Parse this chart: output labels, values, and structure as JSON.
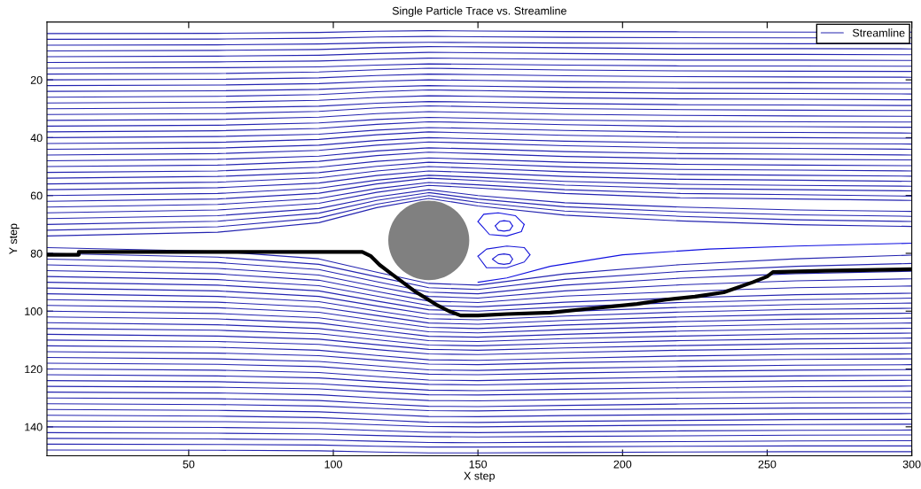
{
  "chart_data": {
    "type": "line",
    "title": "Single Particle Trace vs. Streamline",
    "xlabel": "X step",
    "ylabel": "Y step",
    "xlim": [
      1,
      300
    ],
    "ylim": [
      150,
      0
    ],
    "xticks": [
      50,
      100,
      150,
      200,
      250,
      300
    ],
    "yticks": [
      20,
      40,
      60,
      80,
      100,
      120,
      140
    ],
    "grid": false,
    "legend": "top right",
    "marker": "none",
    "line_style": "solid",
    "x": [
      1,
      60,
      95,
      115,
      133,
      150,
      180,
      220,
      260,
      300
    ],
    "series": [
      {
        "name": "Streamline",
        "color": "#2424b0",
        "values": [
          4,
          3.9,
          3.6,
          3.2,
          3,
          3.1,
          3.3,
          3.4,
          3.5,
          3.5
        ]
      },
      {
        "color": "#2424b0",
        "values": [
          6,
          5.9,
          5.6,
          5.2,
          5,
          5.1,
          5.3,
          5.4,
          5.5,
          5.5
        ]
      },
      {
        "color": "#2424b0",
        "values": [
          8,
          7.9,
          7.6,
          7.2,
          7,
          7.1,
          7.3,
          7.4,
          7.5,
          7.5
        ]
      },
      {
        "color": "#2424b0",
        "values": [
          10,
          9.8,
          9.5,
          8.9,
          8.5,
          8.6,
          8.9,
          9.2,
          9.2,
          9.3
        ]
      },
      {
        "color": "#2424b0",
        "values": [
          12,
          11.8,
          11.5,
          10.9,
          10.5,
          10.6,
          10.9,
          11.2,
          11.2,
          11.3
        ]
      },
      {
        "color": "#2424b0",
        "values": [
          14,
          13.8,
          13.5,
          12.9,
          12.5,
          12.6,
          12.9,
          13.2,
          13.2,
          13.3
        ]
      },
      {
        "color": "#2424b0",
        "values": [
          16,
          15.8,
          15.5,
          14.9,
          14.5,
          14.6,
          14.9,
          15.2,
          15.2,
          15.3
        ]
      },
      {
        "color": "#2424b0",
        "values": [
          18,
          17.8,
          17.3,
          16.5,
          16,
          16.2,
          16.6,
          16.9,
          17,
          17.1
        ]
      },
      {
        "color": "#2424b0",
        "values": [
          20,
          19.8,
          19.3,
          18.5,
          18,
          18.2,
          18.6,
          18.9,
          19,
          19.1
        ]
      },
      {
        "color": "#2424b0",
        "values": [
          22,
          21.8,
          21.3,
          20.5,
          20,
          20.2,
          20.6,
          20.9,
          21,
          21.1
        ]
      },
      {
        "color": "#2424b0",
        "values": [
          24,
          23.8,
          23.3,
          22.5,
          22,
          22.2,
          22.6,
          22.9,
          23,
          23.1
        ]
      },
      {
        "color": "#2424b0",
        "values": [
          26,
          25.7,
          25.1,
          24.1,
          23.5,
          23.7,
          24.2,
          24.6,
          24.7,
          24.9
        ]
      },
      {
        "color": "#2424b0",
        "values": [
          28,
          27.7,
          27.1,
          26.1,
          25.5,
          25.7,
          26.2,
          26.6,
          26.7,
          26.9
        ]
      },
      {
        "color": "#2424b0",
        "values": [
          30,
          29.7,
          29.1,
          28.1,
          27.5,
          27.7,
          28.2,
          28.6,
          28.7,
          28.9
        ]
      },
      {
        "color": "#2424b0",
        "values": [
          32,
          31.7,
          30.9,
          29.7,
          29,
          29.3,
          29.9,
          30.3,
          30.5,
          30.6
        ]
      },
      {
        "color": "#2424b0",
        "values": [
          34,
          33.7,
          32.9,
          31.7,
          31,
          31.3,
          31.9,
          32.3,
          32.5,
          32.6
        ]
      },
      {
        "color": "#2424b0",
        "values": [
          36,
          35.7,
          34.9,
          33.7,
          33,
          33.3,
          33.9,
          34.3,
          34.5,
          34.6
        ]
      },
      {
        "color": "#2424b0",
        "values": [
          38,
          37.6,
          36.8,
          35.4,
          34.5,
          34.8,
          35.5,
          36.1,
          36.2,
          36.4
        ]
      },
      {
        "color": "#2424b0",
        "values": [
          40,
          39.6,
          38.8,
          37.4,
          36.5,
          36.8,
          37.5,
          38.1,
          38.2,
          38.4
        ]
      },
      {
        "color": "#2424b0",
        "values": [
          42,
          41.6,
          40.6,
          39,
          38,
          38.4,
          39.2,
          39.8,
          40,
          40.2
        ]
      },
      {
        "color": "#2424b0",
        "values": [
          44,
          43.6,
          42.6,
          41,
          40,
          40.4,
          41.2,
          41.8,
          42,
          42.2
        ]
      },
      {
        "color": "#2424b0",
        "values": [
          46,
          45.5,
          44.4,
          42.6,
          41.5,
          41.9,
          42.8,
          43.5,
          43.7,
          44
        ]
      },
      {
        "color": "#2424b0",
        "values": [
          48,
          47.5,
          46.4,
          44.6,
          43.5,
          43.9,
          44.8,
          45.5,
          45.7,
          46
        ]
      },
      {
        "color": "#2424b0",
        "values": [
          50,
          49.5,
          48.2,
          46.2,
          45,
          45.5,
          46.5,
          47.2,
          47.5,
          47.7
        ]
      },
      {
        "color": "#2424b0",
        "values": [
          52,
          51.5,
          50.2,
          48.2,
          47,
          47.5,
          48.5,
          49.2,
          49.5,
          49.7
        ]
      },
      {
        "color": "#2424b0",
        "values": [
          54,
          53.4,
          52.1,
          49.9,
          48.5,
          49,
          50.1,
          51,
          51.2,
          51.5
        ]
      },
      {
        "color": "#2424b0",
        "values": [
          56,
          55.4,
          53.9,
          51.5,
          50,
          50.6,
          51.8,
          52.7,
          53,
          53.3
        ]
      },
      {
        "color": "#2424b0",
        "values": [
          58,
          57.3,
          55.7,
          53.1,
          51.5,
          52.1,
          53.4,
          54.4,
          54.7,
          55.1
        ]
      },
      {
        "color": "#2424b0",
        "values": [
          60,
          59.3,
          57.5,
          54.7,
          53,
          53.7,
          55.1,
          56.1,
          56.5,
          56.8
        ]
      },
      {
        "color": "#2424b0",
        "values": [
          62,
          61.2,
          59.2,
          56,
          54,
          54.8,
          56.4,
          57.6,
          58,
          58.4
        ]
      },
      {
        "color": "#2424b0",
        "values": [
          64,
          63.1,
          61,
          57.6,
          55.5,
          56.3,
          58,
          59.3,
          59.7,
          60.2
        ]
      },
      {
        "color": "#2424b0",
        "values": [
          66,
          65,
          62.7,
          58.9,
          56.5,
          57.4,
          59.3,
          60.8,
          61.2,
          61.7
        ]
      },
      {
        "color": "#2424b0",
        "values": [
          68,
          67,
          64.5,
          60.5,
          58,
          60,
          62.5,
          64,
          65,
          65.5
        ]
      },
      {
        "color": "#2424b0",
        "values": [
          70,
          68.9,
          66.1,
          61.7,
          59,
          61.2,
          63.9,
          65.6,
          66.7,
          67.2
        ]
      },
      {
        "color": "#2424b0",
        "values": [
          72,
          70.8,
          67.8,
          63,
          60,
          62.4,
          65.4,
          67.2,
          68.4,
          69
        ]
      },
      {
        "color": "#2424b0",
        "values": [
          74,
          72.7,
          69.4,
          64.2,
          61,
          63.6,
          66.8,
          68.8,
          70.1,
          70.7
        ]
      },
      {
        "color": "#2424b0",
        "values": [
          78,
          79.3,
          81.9,
          86.5,
          90.4,
          91,
          87.1,
          83.9,
          81.9,
          80.6
        ]
      },
      {
        "color": "#2424b0",
        "values": [
          80,
          81.3,
          83.8,
          88.1,
          91.9,
          92.5,
          89,
          86.3,
          84.5,
          83.5
        ]
      },
      {
        "color": "#2424b0",
        "values": [
          82,
          83.2,
          85.6,
          89.8,
          93.4,
          94,
          91,
          88.6,
          87,
          86.2
        ]
      },
      {
        "color": "#2424b0",
        "values": [
          84,
          85.2,
          87.5,
          91.5,
          94.9,
          95.5,
          93,
          90.9,
          89.5,
          88.8
        ]
      },
      {
        "color": "#2424b0",
        "values": [
          86,
          87.1,
          89.3,
          93.2,
          96.5,
          97,
          94.8,
          93.2,
          91.9,
          91.3
        ]
      },
      {
        "color": "#2424b0",
        "values": [
          88,
          89.1,
          91.2,
          94.8,
          98,
          98.5,
          96.9,
          95.4,
          94.3,
          93.8
        ]
      },
      {
        "color": "#2424b0",
        "values": [
          90,
          91,
          93,
          96.5,
          99.5,
          100,
          98.5,
          97,
          96,
          95.5
        ]
      },
      {
        "color": "#2424b0",
        "values": [
          92,
          93,
          94.9,
          98.2,
          101,
          101.5,
          100.1,
          98.7,
          97.7,
          97.2
        ]
      },
      {
        "color": "#2424b0",
        "values": [
          94,
          94.9,
          96.7,
          99.9,
          102.6,
          103,
          101.7,
          100.3,
          99.4,
          99
        ]
      },
      {
        "color": "#2424b0",
        "values": [
          96,
          96.9,
          98.6,
          101.5,
          104.1,
          104.5,
          103.2,
          102,
          101.1,
          100.7
        ]
      },
      {
        "color": "#2424b0",
        "values": [
          98,
          98.8,
          100.4,
          103.2,
          105.6,
          106,
          104.8,
          103.6,
          102.8,
          102.4
        ]
      },
      {
        "color": "#2424b0",
        "values": [
          100,
          100.8,
          102.3,
          104.9,
          107.1,
          107.5,
          106.4,
          105.3,
          104.5,
          104.1
        ]
      },
      {
        "color": "#2424b0",
        "values": [
          102,
          102.7,
          104.1,
          106.6,
          108.7,
          109,
          108,
          106.9,
          106.2,
          105.9
        ]
      },
      {
        "color": "#2424b0",
        "values": [
          104,
          104.7,
          106,
          108.2,
          110.2,
          110.5,
          109.5,
          108.6,
          107.9,
          107.6
        ]
      },
      {
        "color": "#2424b0",
        "values": [
          106,
          106.6,
          107.8,
          109.9,
          111.7,
          112,
          111.1,
          110.2,
          109.6,
          109.3
        ]
      },
      {
        "color": "#2424b0",
        "values": [
          108,
          108.6,
          109.7,
          111.6,
          113.2,
          113.5,
          112.7,
          111.9,
          111.3,
          111
        ]
      },
      {
        "color": "#2424b0",
        "values": [
          110,
          110.5,
          111.5,
          113.3,
          114.8,
          115,
          114.3,
          113.5,
          113,
          112.8
        ]
      },
      {
        "color": "#2424b0",
        "values": [
          112,
          112.5,
          113.5,
          115.3,
          116.8,
          117,
          116.3,
          115.5,
          115,
          114.8
        ]
      },
      {
        "color": "#2424b0",
        "values": [
          114,
          114.5,
          115.4,
          116.9,
          118.3,
          118.5,
          117.8,
          117.2,
          116.7,
          116.5
        ]
      },
      {
        "color": "#2424b0",
        "values": [
          116,
          116.5,
          117.4,
          118.9,
          120.3,
          120.5,
          119.8,
          119.2,
          118.7,
          118.5
        ]
      },
      {
        "color": "#2424b0",
        "values": [
          118,
          118.4,
          119.2,
          120.6,
          121.8,
          122,
          121.4,
          120.8,
          120.4,
          120.2
        ]
      },
      {
        "color": "#2424b0",
        "values": [
          120,
          120.4,
          121.2,
          122.6,
          123.8,
          124,
          123.4,
          122.8,
          122.4,
          122.2
        ]
      },
      {
        "color": "#2424b0",
        "values": [
          122,
          122.4,
          123.1,
          124.3,
          125.3,
          125.5,
          125,
          124.5,
          124.1,
          123.9
        ]
      },
      {
        "color": "#2424b0",
        "values": [
          124,
          124.4,
          125.1,
          126.3,
          127.3,
          127.5,
          127,
          126.5,
          126.1,
          125.9
        ]
      },
      {
        "color": "#2424b0",
        "values": [
          126,
          126.3,
          126.9,
          128,
          128.9,
          129,
          128.6,
          128.1,
          127.8,
          127.7
        ]
      },
      {
        "color": "#2424b0",
        "values": [
          128,
          128.3,
          128.9,
          130,
          130.9,
          131,
          130.6,
          130.1,
          129.8,
          129.7
        ]
      },
      {
        "color": "#2424b0",
        "values": [
          130,
          130.3,
          130.9,
          132,
          132.9,
          133,
          132.6,
          132.1,
          131.8,
          131.7
        ]
      },
      {
        "color": "#2424b0",
        "values": [
          132,
          132.3,
          132.8,
          133.6,
          134.4,
          134.5,
          134.1,
          133.8,
          133.5,
          133.4
        ]
      },
      {
        "color": "#2424b0",
        "values": [
          134,
          134.3,
          134.8,
          135.6,
          136.4,
          136.5,
          136.1,
          135.8,
          135.5,
          135.4
        ]
      },
      {
        "color": "#2424b0",
        "values": [
          136,
          136.3,
          136.8,
          137.6,
          138.4,
          138.5,
          138.1,
          137.8,
          137.5,
          137.4
        ]
      },
      {
        "color": "#2424b0",
        "values": [
          138,
          138.2,
          138.6,
          139.3,
          139.9,
          140,
          139.7,
          139.4,
          139.2,
          139.1
        ]
      },
      {
        "color": "#2424b0",
        "values": [
          140,
          140.2,
          140.6,
          141.3,
          141.9,
          142,
          141.7,
          141.4,
          141.2,
          141.1
        ]
      },
      {
        "color": "#2424b0",
        "values": [
          142,
          142.2,
          142.5,
          143,
          143.4,
          143.5,
          143.3,
          143.1,
          142.9,
          142.8
        ]
      },
      {
        "color": "#2424b0",
        "values": [
          144,
          144.2,
          144.5,
          145,
          145.4,
          145.5,
          145.3,
          145.1,
          144.9,
          144.8
        ]
      },
      {
        "color": "#2424b0",
        "values": [
          146,
          146.1,
          146.3,
          146.7,
          147,
          147,
          146.9,
          146.7,
          146.6,
          146.6
        ]
      },
      {
        "color": "#2424b0",
        "values": [
          148,
          148.1,
          148.3,
          148.7,
          149,
          149,
          148.9,
          148.7,
          148.6,
          148.6
        ]
      },
      {
        "color": "#1010e0",
        "x": [
          150,
          152,
          157,
          163,
          166
        ],
        "values": [
          69,
          66.5,
          66,
          67,
          70
        ]
      },
      {
        "color": "#1212de",
        "x": [
          150,
          154,
          160,
          165,
          166
        ],
        "values": [
          69,
          73.5,
          74,
          72.5,
          70
        ]
      },
      {
        "color": "#1414dc",
        "x": [
          156,
          157.5,
          159,
          161,
          162
        ],
        "values": [
          70.5,
          69,
          68.7,
          69,
          70.5
        ]
      },
      {
        "color": "#1616da",
        "x": [
          156,
          157,
          159,
          161,
          162
        ],
        "values": [
          70.5,
          72,
          72.3,
          72,
          70.5
        ]
      },
      {
        "color": "#1818d8",
        "x": [
          150,
          153,
          160,
          166,
          168
        ],
        "values": [
          81,
          78.5,
          77.5,
          78,
          80.5
        ]
      },
      {
        "color": "#1a1ad6",
        "x": [
          150,
          153,
          160,
          166,
          168
        ],
        "values": [
          81,
          85,
          85,
          83,
          80.5
        ]
      },
      {
        "color": "#1c1cd4",
        "x": [
          155,
          157,
          159,
          161,
          162
        ],
        "values": [
          82,
          80.5,
          80.2,
          80.5,
          82
        ]
      },
      {
        "color": "#1e1ed2",
        "x": [
          155,
          157,
          159,
          161,
          162
        ],
        "values": [
          82,
          83.5,
          83.8,
          83.5,
          82
        ]
      },
      {
        "color": "#1010e0",
        "x": [
          150,
          160,
          175,
          200,
          230,
          260,
          300
        ],
        "values": [
          90,
          88.5,
          84.5,
          80.5,
          78.5,
          77.5,
          76.5
        ]
      },
      {
        "color": "#000000",
        "x": [
          1,
          12,
          12,
          110,
          113,
          116,
          120,
          124,
          128,
          132,
          136,
          140,
          144,
          150,
          160,
          175,
          190,
          205,
          215,
          225,
          235,
          245,
          250,
          252,
          270,
          300
        ],
        "values": [
          80.5,
          80.5,
          79.5,
          79.5,
          81,
          84,
          87,
          90,
          93,
          95.5,
          98,
          100,
          101.5,
          101.5,
          101,
          100.5,
          99,
          97.5,
          96,
          95,
          93.5,
          90,
          88,
          86.5,
          86,
          85.5
        ]
      }
    ]
  }
}
